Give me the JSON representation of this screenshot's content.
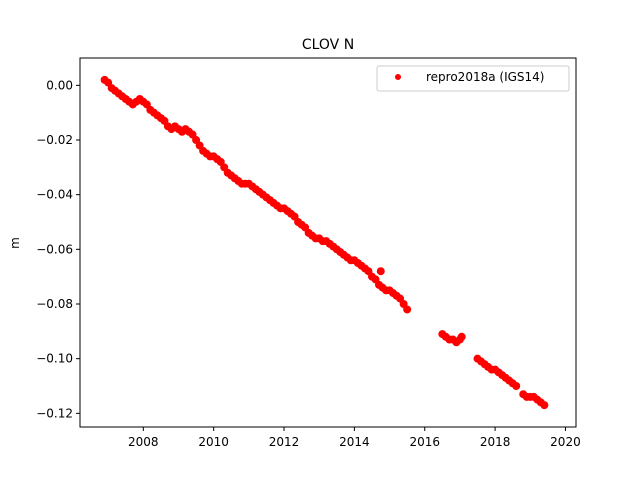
{
  "chart_data": {
    "type": "scatter",
    "title": "CLOV N",
    "xlabel": "",
    "ylabel": "m",
    "xlim": [
      2006.2,
      2020.3
    ],
    "ylim": [
      -0.125,
      0.01
    ],
    "x_ticks": [
      2008,
      2010,
      2012,
      2014,
      2016,
      2018,
      2020
    ],
    "x_tick_labels": [
      "2008",
      "2010",
      "2012",
      "2014",
      "2016",
      "2018",
      "2020"
    ],
    "y_ticks": [
      0.0,
      -0.02,
      -0.04,
      -0.06,
      -0.08,
      -0.1,
      -0.12
    ],
    "y_tick_labels": [
      "0.00",
      "−0.02",
      "−0.04",
      "−0.06",
      "−0.08",
      "−0.10",
      "−0.12"
    ],
    "grid": false,
    "legend_position": "top-right",
    "series": [
      {
        "name": "repro2018a (IGS14)",
        "color": "#ff0000",
        "marker": "circle",
        "points": [
          [
            2006.9,
            0.002
          ],
          [
            2007.0,
            0.001
          ],
          [
            2007.1,
            -0.001
          ],
          [
            2007.2,
            -0.002
          ],
          [
            2007.3,
            -0.003
          ],
          [
            2007.4,
            -0.004
          ],
          [
            2007.5,
            -0.005
          ],
          [
            2007.6,
            -0.006
          ],
          [
            2007.7,
            -0.007
          ],
          [
            2007.8,
            -0.006
          ],
          [
            2007.9,
            -0.005
          ],
          [
            2008.0,
            -0.006
          ],
          [
            2008.1,
            -0.007
          ],
          [
            2008.2,
            -0.009
          ],
          [
            2008.3,
            -0.01
          ],
          [
            2008.4,
            -0.011
          ],
          [
            2008.5,
            -0.012
          ],
          [
            2008.6,
            -0.013
          ],
          [
            2008.7,
            -0.015
          ],
          [
            2008.8,
            -0.016
          ],
          [
            2008.9,
            -0.015
          ],
          [
            2009.0,
            -0.016
          ],
          [
            2009.1,
            -0.017
          ],
          [
            2009.2,
            -0.016
          ],
          [
            2009.3,
            -0.017
          ],
          [
            2009.4,
            -0.018
          ],
          [
            2009.5,
            -0.02
          ],
          [
            2009.6,
            -0.022
          ],
          [
            2009.7,
            -0.024
          ],
          [
            2009.8,
            -0.025
          ],
          [
            2009.9,
            -0.026
          ],
          [
            2010.0,
            -0.026
          ],
          [
            2010.1,
            -0.027
          ],
          [
            2010.2,
            -0.028
          ],
          [
            2010.3,
            -0.03
          ],
          [
            2010.4,
            -0.032
          ],
          [
            2010.5,
            -0.033
          ],
          [
            2010.6,
            -0.034
          ],
          [
            2010.7,
            -0.035
          ],
          [
            2010.8,
            -0.036
          ],
          [
            2010.9,
            -0.036
          ],
          [
            2011.0,
            -0.036
          ],
          [
            2011.1,
            -0.037
          ],
          [
            2011.2,
            -0.038
          ],
          [
            2011.3,
            -0.039
          ],
          [
            2011.4,
            -0.04
          ],
          [
            2011.5,
            -0.041
          ],
          [
            2011.6,
            -0.042
          ],
          [
            2011.7,
            -0.043
          ],
          [
            2011.8,
            -0.044
          ],
          [
            2011.9,
            -0.045
          ],
          [
            2012.0,
            -0.045
          ],
          [
            2012.1,
            -0.046
          ],
          [
            2012.2,
            -0.047
          ],
          [
            2012.3,
            -0.048
          ],
          [
            2012.4,
            -0.05
          ],
          [
            2012.5,
            -0.051
          ],
          [
            2012.6,
            -0.052
          ],
          [
            2012.7,
            -0.054
          ],
          [
            2012.8,
            -0.055
          ],
          [
            2012.9,
            -0.056
          ],
          [
            2013.0,
            -0.056
          ],
          [
            2013.1,
            -0.057
          ],
          [
            2013.2,
            -0.057
          ],
          [
            2013.3,
            -0.058
          ],
          [
            2013.4,
            -0.059
          ],
          [
            2013.5,
            -0.06
          ],
          [
            2013.6,
            -0.061
          ],
          [
            2013.7,
            -0.062
          ],
          [
            2013.8,
            -0.063
          ],
          [
            2013.9,
            -0.064
          ],
          [
            2014.0,
            -0.064
          ],
          [
            2014.1,
            -0.065
          ],
          [
            2014.2,
            -0.066
          ],
          [
            2014.3,
            -0.067
          ],
          [
            2014.4,
            -0.068
          ],
          [
            2014.5,
            -0.07
          ],
          [
            2014.6,
            -0.071
          ],
          [
            2014.7,
            -0.073
          ],
          [
            2014.75,
            -0.068
          ],
          [
            2014.8,
            -0.074
          ],
          [
            2014.9,
            -0.075
          ],
          [
            2015.0,
            -0.075
          ],
          [
            2015.1,
            -0.076
          ],
          [
            2015.2,
            -0.077
          ],
          [
            2015.3,
            -0.078
          ],
          [
            2015.4,
            -0.08
          ],
          [
            2015.5,
            -0.082
          ],
          [
            2016.5,
            -0.091
          ],
          [
            2016.6,
            -0.092
          ],
          [
            2016.7,
            -0.093
          ],
          [
            2016.8,
            -0.093
          ],
          [
            2016.9,
            -0.094
          ],
          [
            2017.0,
            -0.093
          ],
          [
            2017.05,
            -0.092
          ],
          [
            2017.5,
            -0.1
          ],
          [
            2017.6,
            -0.101
          ],
          [
            2017.7,
            -0.102
          ],
          [
            2017.8,
            -0.103
          ],
          [
            2017.9,
            -0.104
          ],
          [
            2018.0,
            -0.104
          ],
          [
            2018.1,
            -0.105
          ],
          [
            2018.2,
            -0.106
          ],
          [
            2018.3,
            -0.107
          ],
          [
            2018.4,
            -0.108
          ],
          [
            2018.5,
            -0.109
          ],
          [
            2018.6,
            -0.11
          ],
          [
            2018.8,
            -0.113
          ],
          [
            2018.9,
            -0.114
          ],
          [
            2019.0,
            -0.114
          ],
          [
            2019.1,
            -0.114
          ],
          [
            2019.2,
            -0.115
          ],
          [
            2019.3,
            -0.116
          ],
          [
            2019.4,
            -0.117
          ]
        ]
      }
    ]
  }
}
